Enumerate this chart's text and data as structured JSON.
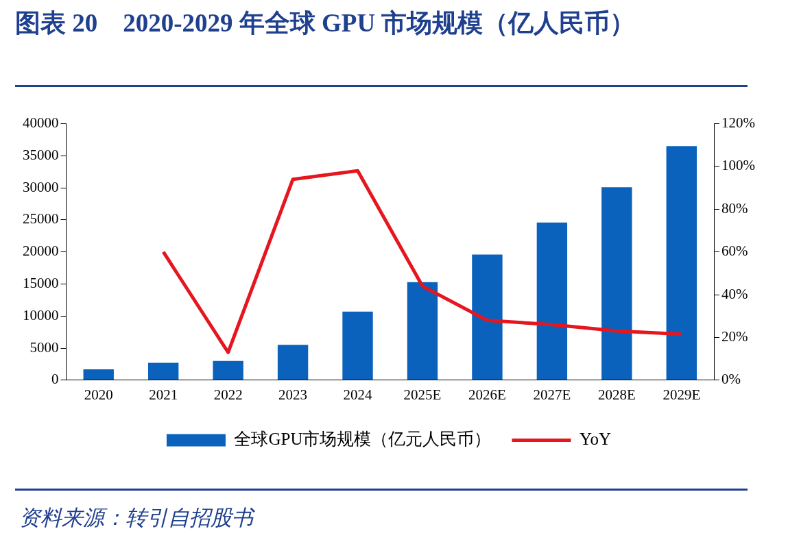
{
  "chart_data": {
    "type": "bar",
    "title": "图表 20　2020-2029 年全球 GPU 市场规模（亿人民币）",
    "categories": [
      "2020",
      "2021",
      "2022",
      "2023",
      "2024",
      "2025E",
      "2026E",
      "2027E",
      "2028E",
      "2029E"
    ],
    "series": [
      {
        "name": "全球GPU市场规模（亿元人民币）",
        "color": "#0a62bc",
        "values": [
          1700,
          2700,
          3000,
          5500,
          10700,
          15300,
          19600,
          24600,
          30100,
          36500
        ]
      },
      {
        "name": "YoY",
        "type": "line",
        "axis": "y2",
        "color": "#e5161f",
        "values": [
          null,
          60,
          13,
          94,
          98,
          44,
          28,
          26,
          23,
          21.5
        ]
      }
    ],
    "ylim": [
      0,
      40000
    ],
    "yticks": [
      0,
      5000,
      10000,
      15000,
      20000,
      25000,
      30000,
      35000,
      40000
    ],
    "y2lim": [
      0,
      120
    ],
    "y2ticks": [
      {
        "value": 0,
        "label": "0%"
      },
      {
        "value": 20,
        "label": "20%"
      },
      {
        "value": 40,
        "label": "40%"
      },
      {
        "value": 60,
        "label": "60%"
      },
      {
        "value": 80,
        "label": "80%"
      },
      {
        "value": 100,
        "label": "100%"
      },
      {
        "value": 120,
        "label": "120%"
      }
    ],
    "grid": false,
    "legend": "bottom",
    "marker": "none",
    "line_style": "solid",
    "annotations": [
      "资料来源：转引自招股书"
    ]
  }
}
